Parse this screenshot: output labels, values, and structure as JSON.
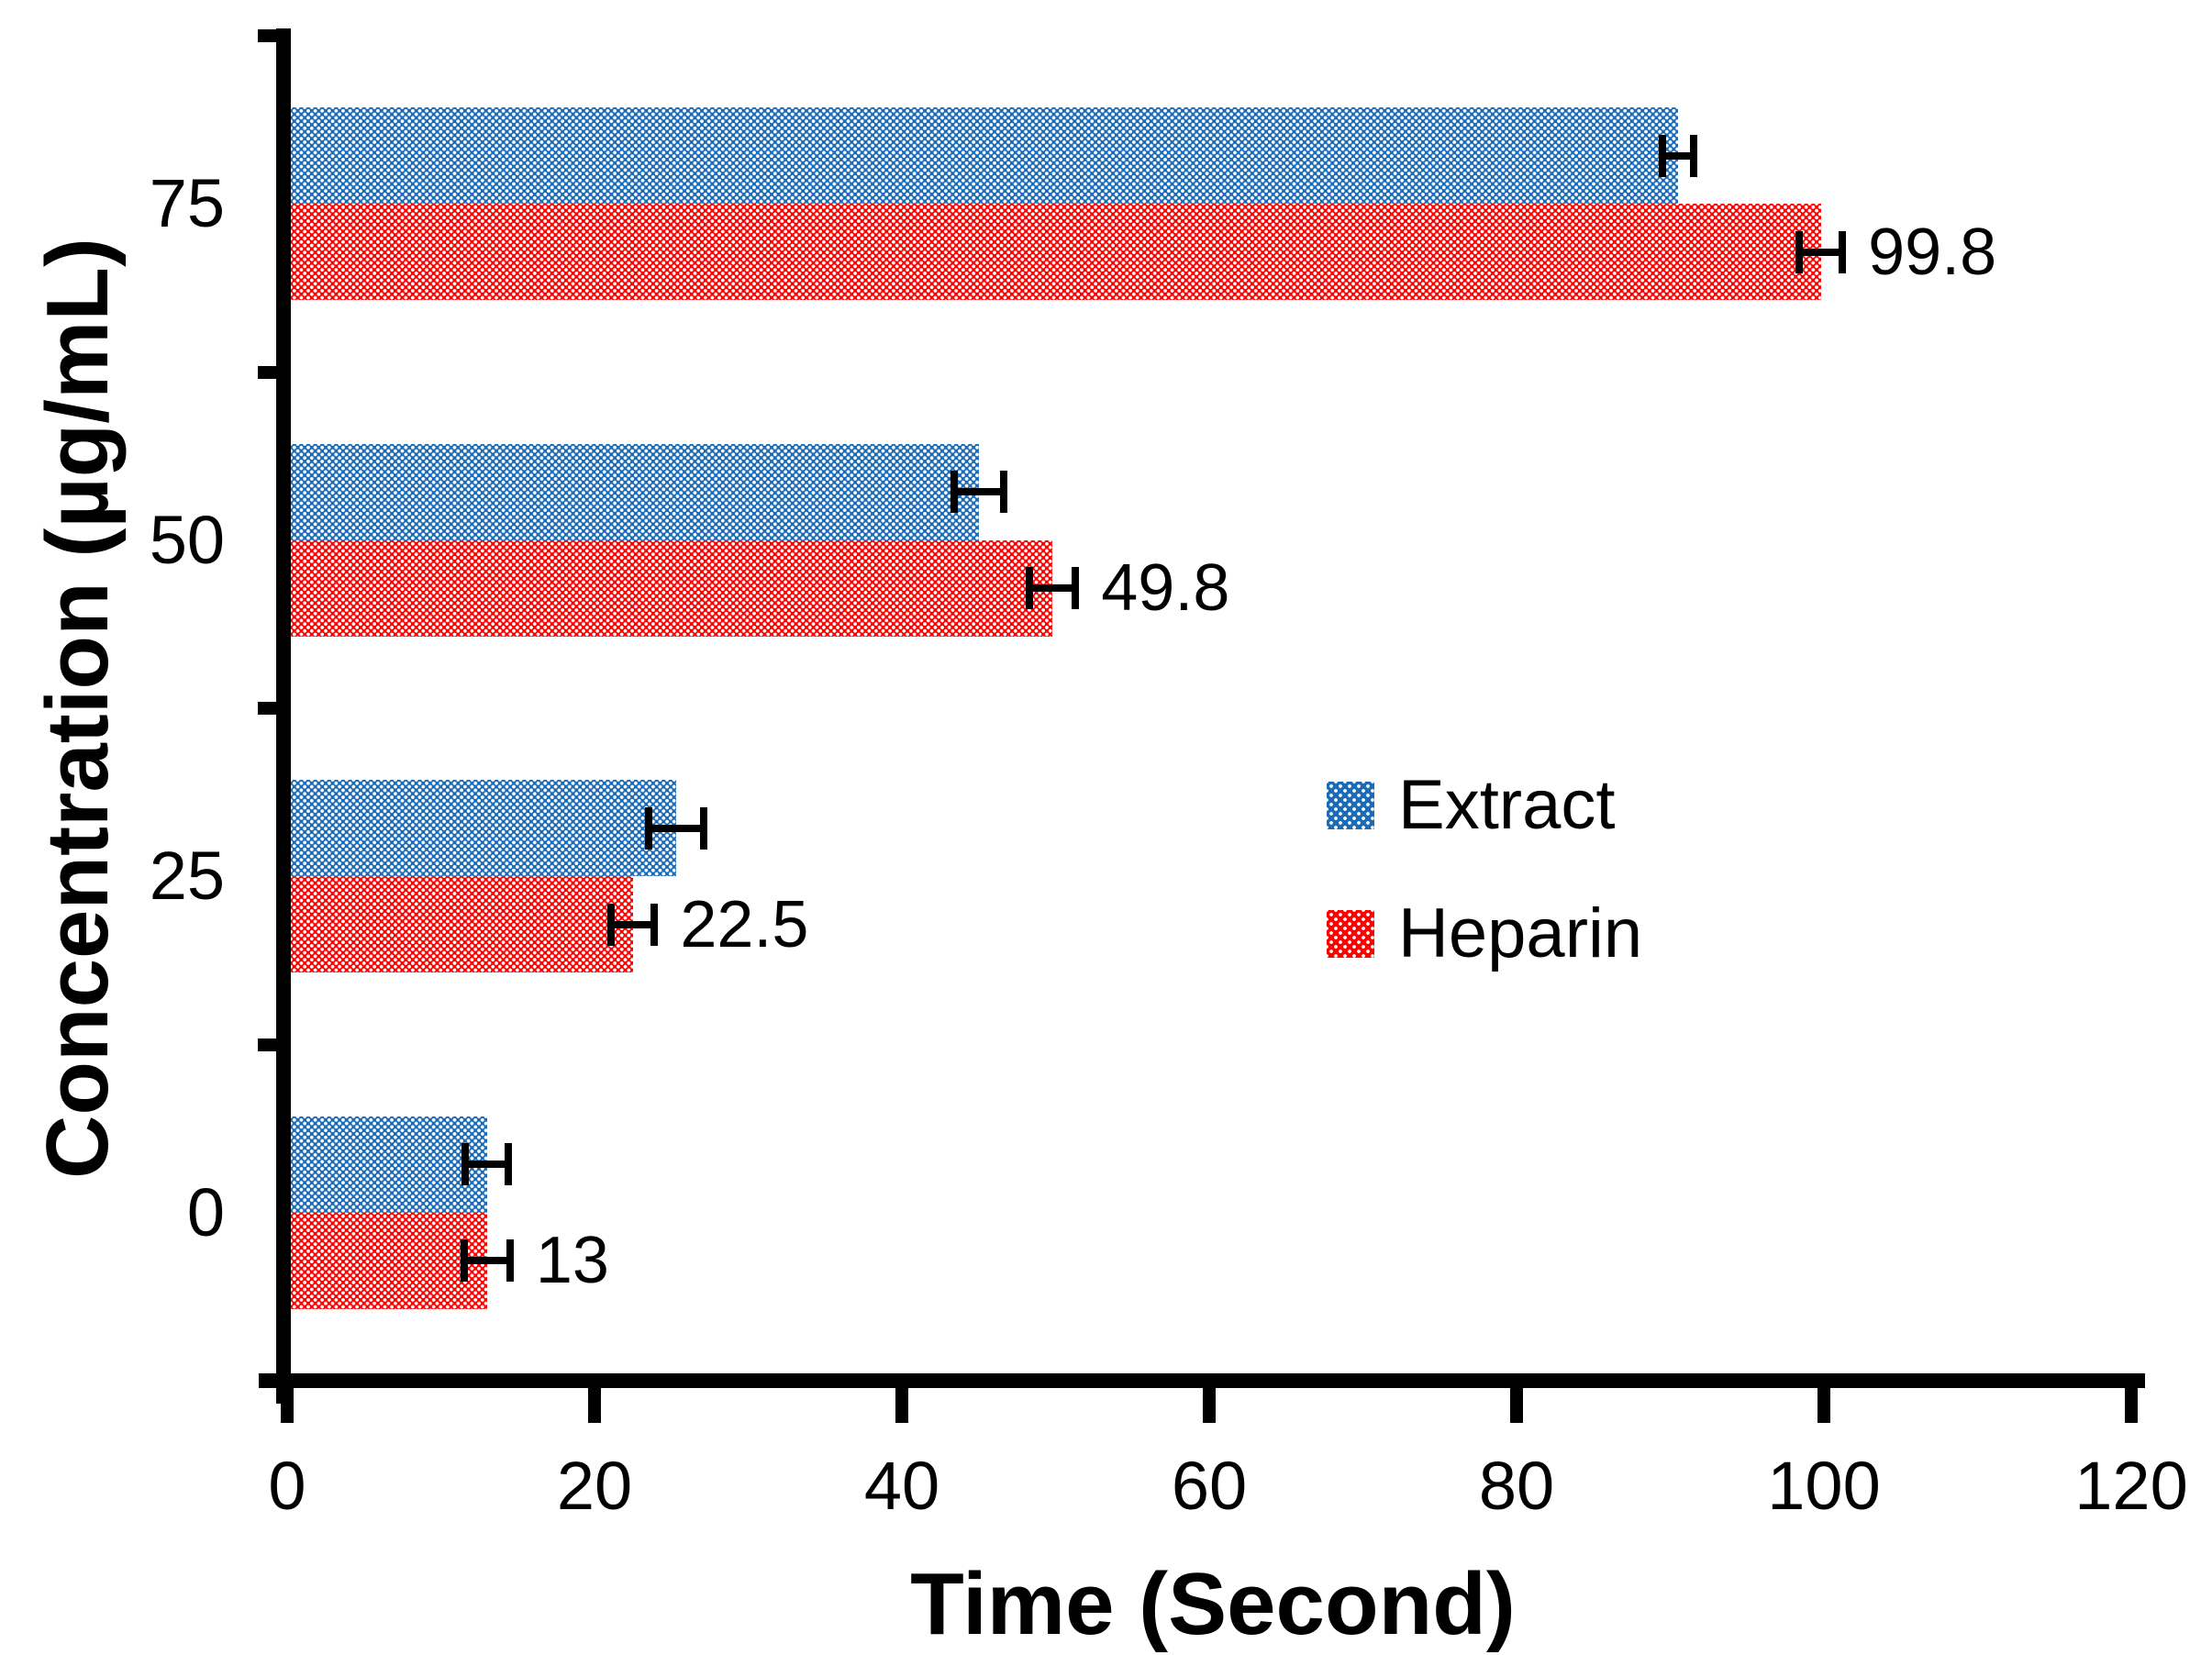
{
  "chart_data": {
    "type": "bar",
    "orientation": "horizontal",
    "title": "",
    "xlabel": "Time (Second)",
    "ylabel": "Concentration (µg/mL)",
    "xlim": [
      0,
      120
    ],
    "x_ticks": [
      "0",
      "20",
      "40",
      "60",
      "80",
      "100",
      "120"
    ],
    "categories": [
      "75",
      "50",
      "25",
      "0"
    ],
    "series": [
      {
        "name": "Extract",
        "color": "#1C6BB7",
        "values": [
          90.5,
          45,
          25.3,
          13
        ],
        "errors": [
          1.0,
          1.6,
          1.8,
          1.4
        ],
        "labels": [
          "",
          "",
          "",
          ""
        ]
      },
      {
        "name": "Heparin",
        "color": "#FF0000",
        "values": [
          99.8,
          49.8,
          22.5,
          13
        ],
        "errors": [
          1.4,
          1.5,
          1.4,
          1.5
        ],
        "labels": [
          "99.8",
          "49.8",
          "22.5",
          "13"
        ]
      }
    ],
    "grid": false,
    "legend_position": "center-right",
    "fill_pattern": "white-dot-grid",
    "axis_color": "#000000",
    "background_color": "#FFFFFF"
  }
}
